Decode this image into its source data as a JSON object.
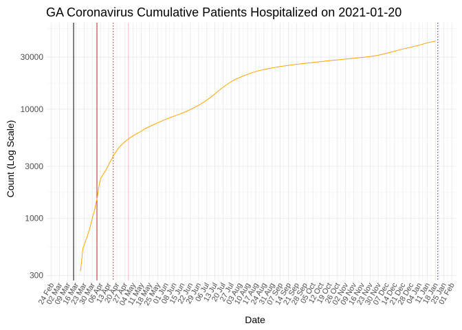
{
  "chart_data": {
    "type": "line",
    "title": "GA Coronavirus Cumulative Patients Hospitalized on 2021-01-20",
    "xlabel": "Date",
    "ylabel": "Count (Log Scale)",
    "y_scale": "log10",
    "ylim": [
      270,
      62000
    ],
    "xlim": [
      "2020-02-20",
      "2021-02-05"
    ],
    "grid": true,
    "yticks": [
      300,
      1000,
      3000,
      10000,
      30000
    ],
    "ytick_labels": [
      "300",
      "1000",
      "3000",
      "10000",
      "30000"
    ],
    "xticks": [
      "2020-02-24",
      "2020-03-02",
      "2020-03-09",
      "2020-03-16",
      "2020-03-23",
      "2020-03-30",
      "2020-04-06",
      "2020-04-13",
      "2020-04-20",
      "2020-04-27",
      "2020-05-04",
      "2020-05-11",
      "2020-05-18",
      "2020-05-25",
      "2020-06-01",
      "2020-06-08",
      "2020-06-15",
      "2020-06-22",
      "2020-06-29",
      "2020-07-06",
      "2020-07-13",
      "2020-07-20",
      "2020-07-27",
      "2020-08-03",
      "2020-08-10",
      "2020-08-17",
      "2020-08-24",
      "2020-08-31",
      "2020-09-07",
      "2020-09-14",
      "2020-09-21",
      "2020-09-28",
      "2020-10-05",
      "2020-10-12",
      "2020-10-19",
      "2020-10-26",
      "2020-11-02",
      "2020-11-09",
      "2020-11-16",
      "2020-11-23",
      "2020-11-30",
      "2020-12-07",
      "2020-12-14",
      "2020-12-21",
      "2020-12-28",
      "2021-01-04",
      "2021-01-11",
      "2021-01-18",
      "2021-01-25",
      "2021-02-01"
    ],
    "xtick_labels": [
      "24 Feb",
      "02 Mar",
      "09 Mar",
      "16 Mar",
      "23 Mar",
      "30 Mar",
      "06 Apr",
      "13 Apr",
      "20 Apr",
      "27 Apr",
      "04 May",
      "11 May",
      "18 May",
      "25 May",
      "01 Jun",
      "08 Jun",
      "15 Jun",
      "22 Jun",
      "29 Jun",
      "06 Jul",
      "13 Jul",
      "20 Jul",
      "27 Jul",
      "03 Aug",
      "10 Aug",
      "17 Aug",
      "24 Aug",
      "31 Aug",
      "07 Sep",
      "14 Sep",
      "21 Sep",
      "28 Sep",
      "05 Oct",
      "12 Oct",
      "19 Oct",
      "26 Oct",
      "02 Nov",
      "09 Nov",
      "16 Nov",
      "23 Nov",
      "30 Nov",
      "07 Dec",
      "14 Dec",
      "21 Dec",
      "28 Dec",
      "04 Jan",
      "11 Jan",
      "18 Jan",
      "25 Jan",
      "01 Feb"
    ],
    "series": [
      {
        "color": "#FFA500",
        "points": [
          {
            "x": "2020-03-20",
            "y": 330
          },
          {
            "x": "2020-03-21",
            "y": 420
          },
          {
            "x": "2020-03-22",
            "y": 530
          },
          {
            "x": "2020-03-24",
            "y": 610
          },
          {
            "x": "2020-03-26",
            "y": 700
          },
          {
            "x": "2020-03-28",
            "y": 820
          },
          {
            "x": "2020-03-30",
            "y": 1000
          },
          {
            "x": "2020-04-01",
            "y": 1200
          },
          {
            "x": "2020-04-03",
            "y": 1500
          },
          {
            "x": "2020-04-04",
            "y": 1750
          },
          {
            "x": "2020-04-05",
            "y": 2050
          },
          {
            "x": "2020-04-06",
            "y": 2300
          },
          {
            "x": "2020-04-08",
            "y": 2500
          },
          {
            "x": "2020-04-10",
            "y": 2700
          },
          {
            "x": "2020-04-12",
            "y": 2950
          },
          {
            "x": "2020-04-14",
            "y": 3250
          },
          {
            "x": "2020-04-16",
            "y": 3550
          },
          {
            "x": "2020-04-18",
            "y": 3900
          },
          {
            "x": "2020-04-20",
            "y": 4200
          },
          {
            "x": "2020-04-23",
            "y": 4600
          },
          {
            "x": "2020-04-27",
            "y": 5050
          },
          {
            "x": "2020-05-01",
            "y": 5450
          },
          {
            "x": "2020-05-05",
            "y": 5800
          },
          {
            "x": "2020-05-10",
            "y": 6200
          },
          {
            "x": "2020-05-15",
            "y": 6700
          },
          {
            "x": "2020-05-20",
            "y": 7100
          },
          {
            "x": "2020-05-25",
            "y": 7500
          },
          {
            "x": "2020-05-31",
            "y": 8000
          },
          {
            "x": "2020-06-05",
            "y": 8400
          },
          {
            "x": "2020-06-10",
            "y": 8800
          },
          {
            "x": "2020-06-15",
            "y": 9200
          },
          {
            "x": "2020-06-20",
            "y": 9700
          },
          {
            "x": "2020-06-25",
            "y": 10300
          },
          {
            "x": "2020-06-30",
            "y": 11000
          },
          {
            "x": "2020-07-05",
            "y": 11900
          },
          {
            "x": "2020-07-10",
            "y": 13000
          },
          {
            "x": "2020-07-15",
            "y": 14400
          },
          {
            "x": "2020-07-20",
            "y": 15900
          },
          {
            "x": "2020-07-25",
            "y": 17300
          },
          {
            "x": "2020-07-30",
            "y": 18600
          },
          {
            "x": "2020-08-04",
            "y": 19700
          },
          {
            "x": "2020-08-09",
            "y": 20700
          },
          {
            "x": "2020-08-14",
            "y": 21600
          },
          {
            "x": "2020-08-19",
            "y": 22400
          },
          {
            "x": "2020-08-24",
            "y": 23100
          },
          {
            "x": "2020-08-31",
            "y": 23900
          },
          {
            "x": "2020-09-07",
            "y": 24600
          },
          {
            "x": "2020-09-14",
            "y": 25200
          },
          {
            "x": "2020-09-21",
            "y": 25800
          },
          {
            "x": "2020-09-28",
            "y": 26300
          },
          {
            "x": "2020-10-05",
            "y": 26800
          },
          {
            "x": "2020-10-12",
            "y": 27300
          },
          {
            "x": "2020-10-19",
            "y": 27800
          },
          {
            "x": "2020-10-26",
            "y": 28300
          },
          {
            "x": "2020-11-02",
            "y": 28800
          },
          {
            "x": "2020-11-09",
            "y": 29300
          },
          {
            "x": "2020-11-16",
            "y": 29800
          },
          {
            "x": "2020-11-23",
            "y": 30400
          },
          {
            "x": "2020-11-30",
            "y": 31200
          },
          {
            "x": "2020-12-07",
            "y": 32500
          },
          {
            "x": "2020-12-14",
            "y": 34000
          },
          {
            "x": "2020-12-21",
            "y": 35600
          },
          {
            "x": "2020-12-28",
            "y": 37000
          },
          {
            "x": "2021-01-04",
            "y": 38600
          },
          {
            "x": "2021-01-11",
            "y": 40500
          },
          {
            "x": "2021-01-15",
            "y": 41500
          },
          {
            "x": "2021-01-18",
            "y": 42000
          }
        ]
      }
    ],
    "vlines": [
      {
        "x": "2020-03-14",
        "color": "#000000",
        "style": "solid"
      },
      {
        "x": "2020-04-03",
        "color": "#B22222",
        "style": "solid"
      },
      {
        "x": "2020-04-17",
        "color": "#B22222",
        "style": "dotted"
      },
      {
        "x": "2020-04-30",
        "color": "#FFB6C1",
        "style": "solid"
      },
      {
        "x": "2021-01-20",
        "color": "#191970",
        "style": "dotted"
      }
    ]
  }
}
